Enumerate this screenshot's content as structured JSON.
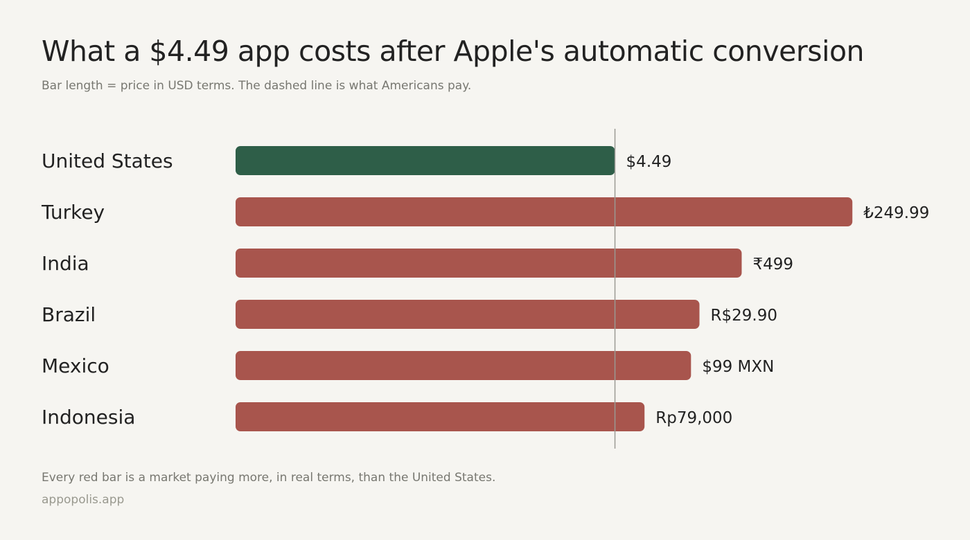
{
  "title": "What a $4.49 app costs after Apple's automatic conversion",
  "subtitle": "Bar length = price in USD terms. The dashed line is what Americans pay.",
  "footnote": "Every red bar is a market paying more, in real terms, than the United States.",
  "source": "appopolis.app",
  "colors": {
    "baseline_bar": "#2e5e48",
    "higher_bar": "#a8554d",
    "reference_line": "#9a9a94",
    "background": "#f6f5f1",
    "text": "#222222",
    "muted_text": "#777770"
  },
  "chart_data": {
    "type": "bar",
    "orientation": "horizontal",
    "categories": [
      "United States",
      "Turkey",
      "India",
      "Brazil",
      "Mexico",
      "Indonesia"
    ],
    "values": [
      4.49,
      7.3,
      5.99,
      5.49,
      5.39,
      4.84
    ],
    "value_labels": [
      "$4.49",
      "₺249.99",
      "₹499",
      "R$29.90",
      "$99 MXN",
      "Rp79,000"
    ],
    "reference_value": 4.49,
    "xlim": [
      0,
      8.2
    ],
    "grid": false,
    "legend": "none"
  }
}
